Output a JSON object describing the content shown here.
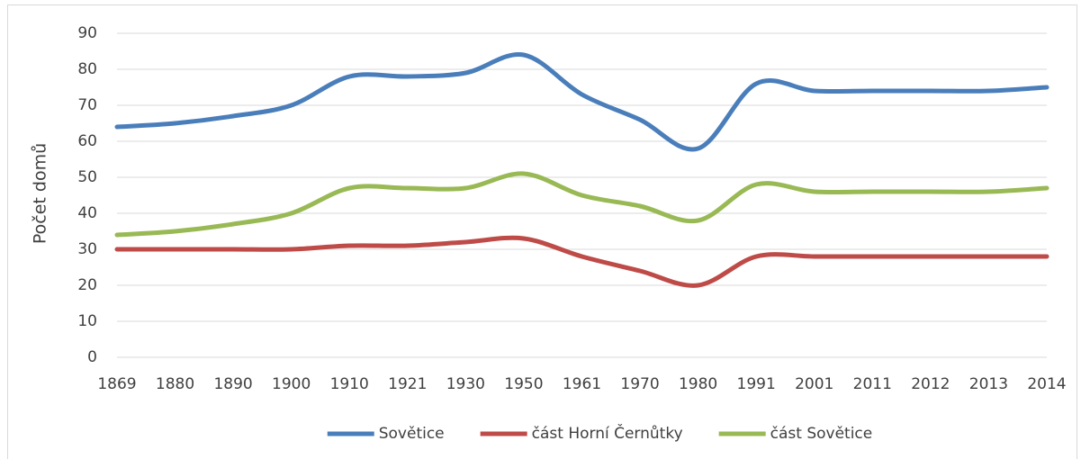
{
  "chart_data": {
    "type": "line",
    "y_label": "Počet domů",
    "categories": [
      "1869",
      "1880",
      "1890",
      "1900",
      "1910",
      "1921",
      "1930",
      "1950",
      "1961",
      "1970",
      "1980",
      "1991",
      "2001",
      "2011",
      "2012",
      "2013",
      "2014"
    ],
    "series": [
      {
        "name": "Sovětice",
        "color": "#4a7ebb",
        "values": [
          64,
          65,
          67,
          70,
          78,
          78,
          79,
          84,
          73,
          66,
          58,
          76,
          74,
          74,
          74,
          74,
          75
        ]
      },
      {
        "name": "část Horní Černůtky",
        "color": "#be4b48",
        "values": [
          30,
          30,
          30,
          30,
          31,
          31,
          32,
          33,
          28,
          24,
          20,
          28,
          28,
          28,
          28,
          28,
          28
        ]
      },
      {
        "name": "část Sovětice",
        "color": "#98b954",
        "values": [
          34,
          35,
          37,
          40,
          47,
          47,
          47,
          51,
          45,
          42,
          38,
          48,
          46,
          46,
          46,
          46,
          47
        ]
      }
    ],
    "ylim": [
      0,
      90
    ],
    "yticks": [
      0,
      10,
      20,
      30,
      40,
      50,
      60,
      70,
      80,
      90
    ],
    "grid": true,
    "legend": "bottom"
  }
}
